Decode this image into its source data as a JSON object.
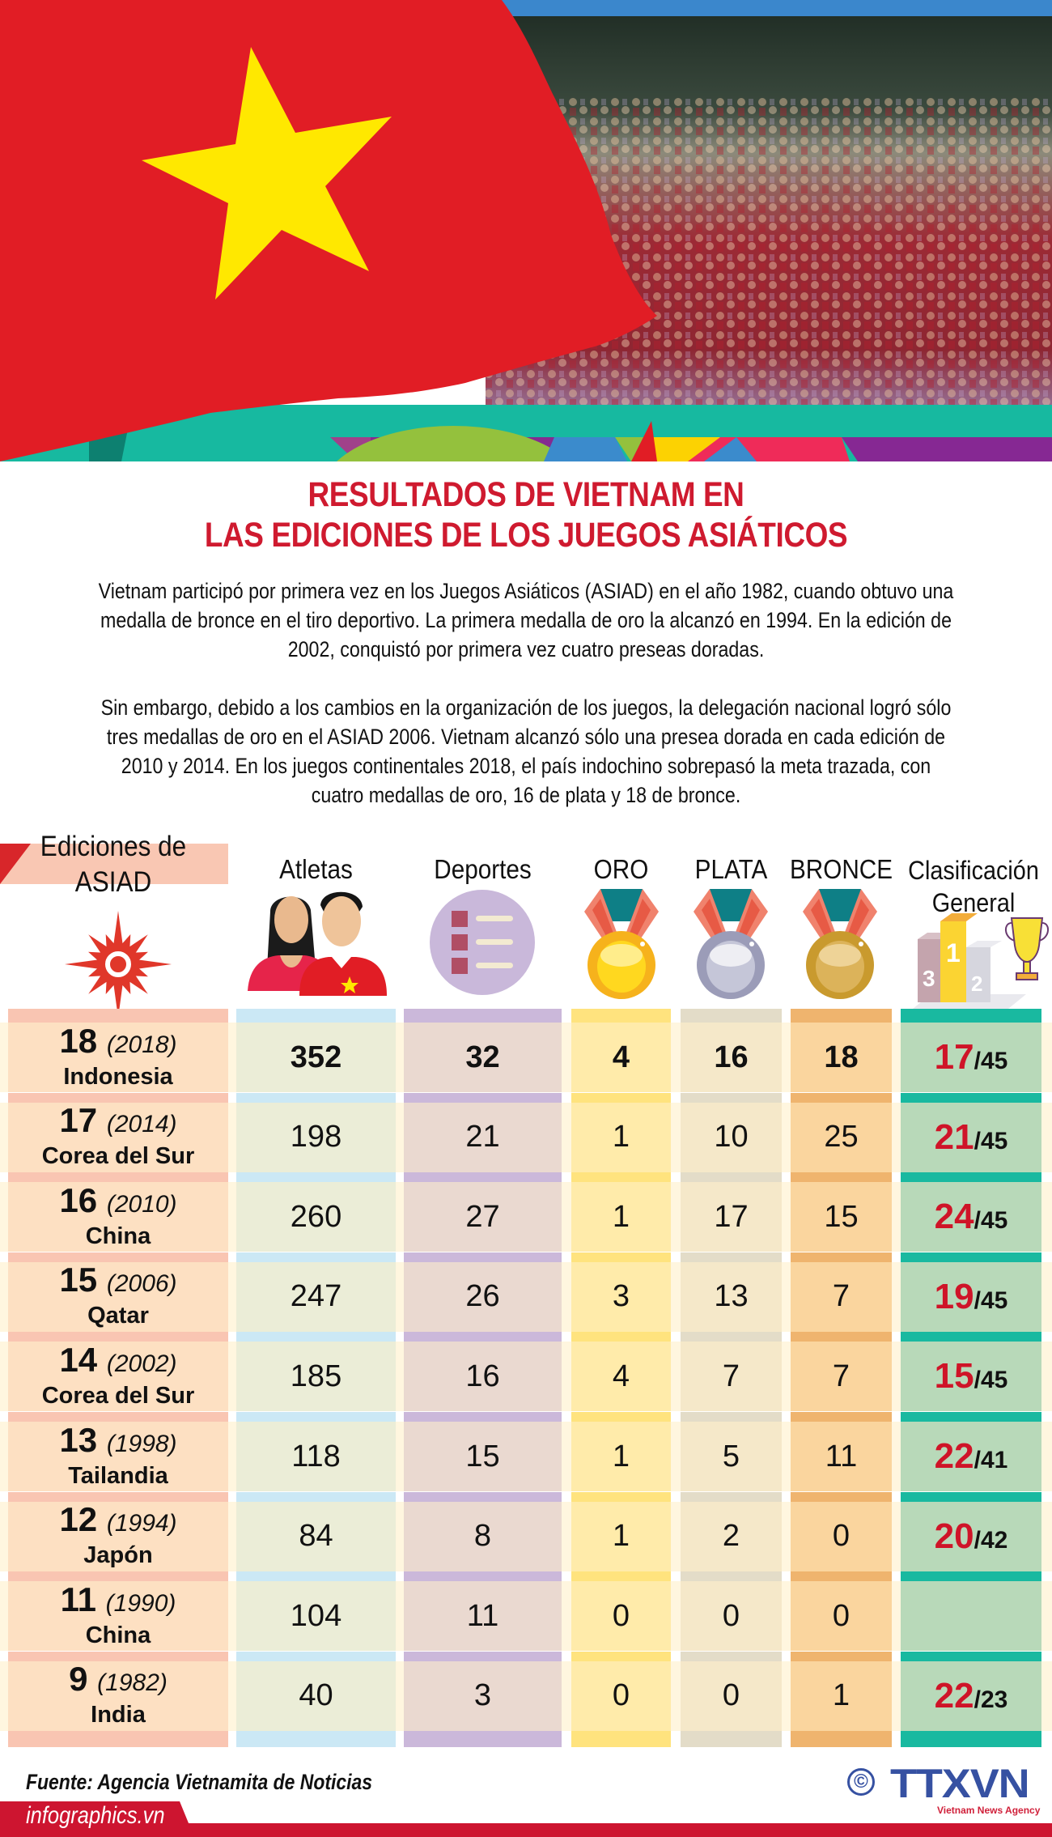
{
  "title": {
    "line1": "RESULTADOS DE VIETNAM EN",
    "line2": "LAS EDICIONES DE LOS JUEGOS ASIÁTICOS"
  },
  "intro": {
    "p1": "Vietnam participó por primera vez en los Juegos Asiáticos (ASIAD) en el año 1982, cuando obtuvo una medalla de bronce en el tiro deportivo. La primera medalla de oro la alcanzó en 1994. En la edición de 2002, conquistó por primera vez cuatro preseas doradas.",
    "p2": "Sin embargo, debido a los cambios en la organización de los juegos, la delegación nacional logró sólo tres medallas de oro en el ASIAD 2006. Vietnam alcanzó sólo una presea dorada en cada edición de 2010 y 2014. En los juegos continentales 2018, el país indochino sobrepasó la meta trazada, con cuatro medallas de oro, 16 de plata y 18 de bronce."
  },
  "table": {
    "headers": {
      "edition": "Ediciones de ASIAD",
      "athletes": "Atletas",
      "sports": "Deportes",
      "gold": "ORO",
      "silver": "PLATA",
      "bronze": "BRONCE",
      "ranking": "Clasificación General"
    },
    "header_icons": {
      "edition": "asian-games-sun-icon",
      "athletes": "athletes-icon",
      "sports": "sports-list-icon",
      "gold": "gold-medal-icon",
      "silver": "silver-medal-icon",
      "bronze": "bronze-medal-icon",
      "ranking": "podium-trophy-icon"
    },
    "rows": [
      {
        "edition": "18",
        "year": "(2018)",
        "host": "Indonesia",
        "athletes": "352",
        "sports": "32",
        "gold": "4",
        "silver": "16",
        "bronze": "18",
        "rank": "17",
        "of": "/45"
      },
      {
        "edition": "17",
        "year": "(2014)",
        "host": "Corea del Sur",
        "athletes": "198",
        "sports": "21",
        "gold": "1",
        "silver": "10",
        "bronze": "25",
        "rank": "21",
        "of": "/45"
      },
      {
        "edition": "16",
        "year": "(2010)",
        "host": "China",
        "athletes": "260",
        "sports": "27",
        "gold": "1",
        "silver": "17",
        "bronze": "15",
        "rank": "24",
        "of": "/45"
      },
      {
        "edition": "15",
        "year": "(2006)",
        "host": "Qatar",
        "athletes": "247",
        "sports": "26",
        "gold": "3",
        "silver": "13",
        "bronze": "7",
        "rank": "19",
        "of": "/45"
      },
      {
        "edition": "14",
        "year": "(2002)",
        "host": "Corea del Sur",
        "athletes": "185",
        "sports": "16",
        "gold": "4",
        "silver": "7",
        "bronze": "7",
        "rank": "15",
        "of": "/45"
      },
      {
        "edition": "13",
        "year": "(1998)",
        "host": "Tailandia",
        "athletes": "118",
        "sports": "15",
        "gold": "1",
        "silver": "5",
        "bronze": "11",
        "rank": "22",
        "of": "/41"
      },
      {
        "edition": "12",
        "year": "(1994)",
        "host": "Japón",
        "athletes": "84",
        "sports": "8",
        "gold": "1",
        "silver": "2",
        "bronze": "0",
        "rank": "20",
        "of": "/42"
      },
      {
        "edition": "11",
        "year": "(1990)",
        "host": "China",
        "athletes": "104",
        "sports": "11",
        "gold": "0",
        "silver": "0",
        "bronze": "0",
        "rank": "",
        "of": ""
      },
      {
        "edition": "9",
        "year": "(1982)",
        "host": "India",
        "athletes": "40",
        "sports": "3",
        "gold": "0",
        "silver": "0",
        "bronze": "1",
        "rank": "22",
        "of": "/23"
      }
    ]
  },
  "footer": {
    "source": "Fuente: Agencia Vietnamita de Noticias",
    "site": "infographics.vn",
    "copyright_symbol": "©",
    "agency_logo": "TTXVN",
    "agency_tagline": "Vietnam News Agency"
  },
  "colors": {
    "title_red": "#cf1a2f",
    "flag_red": "#e11d25",
    "star_yellow": "#ffe800",
    "rank_red": "#cf1428",
    "agency_blue": "#3651a2",
    "col_strips": [
      "#f9c5b2",
      "#cbe8f5",
      "#cbb8da",
      "#ffe37e",
      "#e3dcc8",
      "#efb46e",
      "#19b9a0"
    ],
    "col_fills": [
      "#fde0c2",
      "#ebedd7",
      "#ead9d0",
      "#ffebaa",
      "#f5e8c9",
      "#fad59e",
      "#b8d9b9"
    ]
  }
}
